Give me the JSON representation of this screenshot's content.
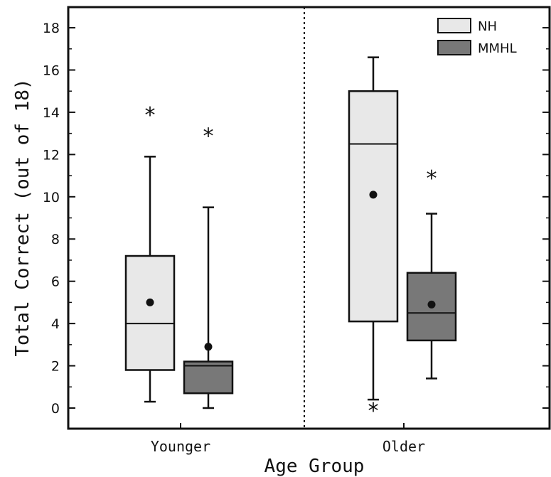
{
  "chart_data": {
    "type": "boxplot",
    "xlabel": "Age Group",
    "ylabel": "Total Correct (out of 18)",
    "ylim": [
      -1,
      19
    ],
    "yticks": [
      0,
      2,
      4,
      6,
      8,
      10,
      12,
      14,
      16,
      18
    ],
    "categories": [
      "Younger",
      "Older"
    ],
    "legend_position": "top-right",
    "colors": {
      "NH": "#e8e8e8",
      "MMHL": "#787878"
    },
    "series": [
      {
        "name": "NH",
        "boxes": [
          {
            "category": "Younger",
            "whisker_low": 0.3,
            "q1": 1.8,
            "median": 4.0,
            "q3": 7.2,
            "whisker_high": 11.9,
            "mean": 5.0,
            "outliers": [
              14.0
            ]
          },
          {
            "category": "Older",
            "whisker_low": 0.4,
            "q1": 4.1,
            "median": 12.5,
            "q3": 15.0,
            "whisker_high": 16.6,
            "mean": 10.1,
            "outliers": [
              0.0
            ]
          }
        ]
      },
      {
        "name": "MMHL",
        "boxes": [
          {
            "category": "Younger",
            "whisker_low": 0.0,
            "q1": 0.7,
            "median": 2.0,
            "q3": 2.2,
            "whisker_high": 9.5,
            "mean": 2.9,
            "outliers": [
              13.0
            ]
          },
          {
            "category": "Older",
            "whisker_low": 1.4,
            "q1": 3.2,
            "median": 4.5,
            "q3": 6.4,
            "whisker_high": 9.2,
            "mean": 4.9,
            "outliers": [
              11.0
            ]
          }
        ]
      }
    ]
  }
}
